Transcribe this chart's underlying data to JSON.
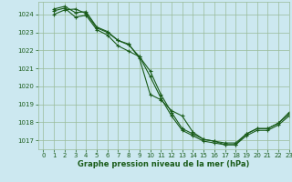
{
  "title": "Graphe pression niveau de la mer (hPa)",
  "background_color": "#cce8f0",
  "grid_color": "#99bb99",
  "line_color": "#1a5c1a",
  "marker": "+",
  "xlim": [
    -0.5,
    23
  ],
  "ylim": [
    1016.5,
    1024.7
  ],
  "yticks": [
    1017,
    1018,
    1019,
    1020,
    1021,
    1022,
    1023,
    1024
  ],
  "xticks": [
    0,
    1,
    2,
    3,
    4,
    5,
    6,
    7,
    8,
    9,
    10,
    11,
    12,
    13,
    14,
    15,
    16,
    17,
    18,
    19,
    20,
    21,
    22,
    23
  ],
  "series": [
    [
      1024.3,
      1024.45,
      1024.1,
      1024.15,
      1023.3,
      1023.05,
      1022.55,
      1022.35,
      1021.55,
      1019.55,
      1019.25,
      1018.65,
      1018.35,
      1017.45,
      1017.05,
      1016.95,
      1016.75,
      1016.75,
      1017.35,
      1017.65,
      1017.65,
      1017.95,
      1018.45
    ],
    [
      1024.2,
      1024.35,
      1023.85,
      1023.95,
      1023.15,
      1022.85,
      1022.25,
      1021.95,
      1021.65,
      1020.55,
      1019.35,
      1018.35,
      1017.55,
      1017.25,
      1016.95,
      1016.85,
      1016.75,
      1016.75,
      1017.25,
      1017.55,
      1017.55,
      1017.85,
      1018.35
    ],
    [
      1024.0,
      1024.25,
      1024.3,
      1024.05,
      1023.25,
      1023.0,
      1022.55,
      1022.3,
      1021.65,
      1020.85,
      1019.55,
      1018.55,
      1017.65,
      1017.35,
      1017.05,
      1016.95,
      1016.85,
      1016.85,
      1017.35,
      1017.65,
      1017.65,
      1017.95,
      1018.55
    ]
  ],
  "series_x": [
    [
      1,
      2,
      3,
      4,
      5,
      6,
      7,
      8,
      9,
      10,
      11,
      12,
      13,
      14,
      15,
      16,
      17,
      18,
      19,
      20,
      21,
      22,
      23
    ],
    [
      1,
      2,
      3,
      4,
      5,
      6,
      7,
      8,
      9,
      10,
      11,
      12,
      13,
      14,
      15,
      16,
      17,
      18,
      19,
      20,
      21,
      22,
      23
    ],
    [
      1,
      2,
      3,
      4,
      5,
      6,
      7,
      8,
      9,
      10,
      11,
      12,
      13,
      14,
      15,
      16,
      17,
      18,
      19,
      20,
      21,
      22,
      23
    ]
  ],
  "title_fontsize": 6,
  "tick_fontsize": 5
}
